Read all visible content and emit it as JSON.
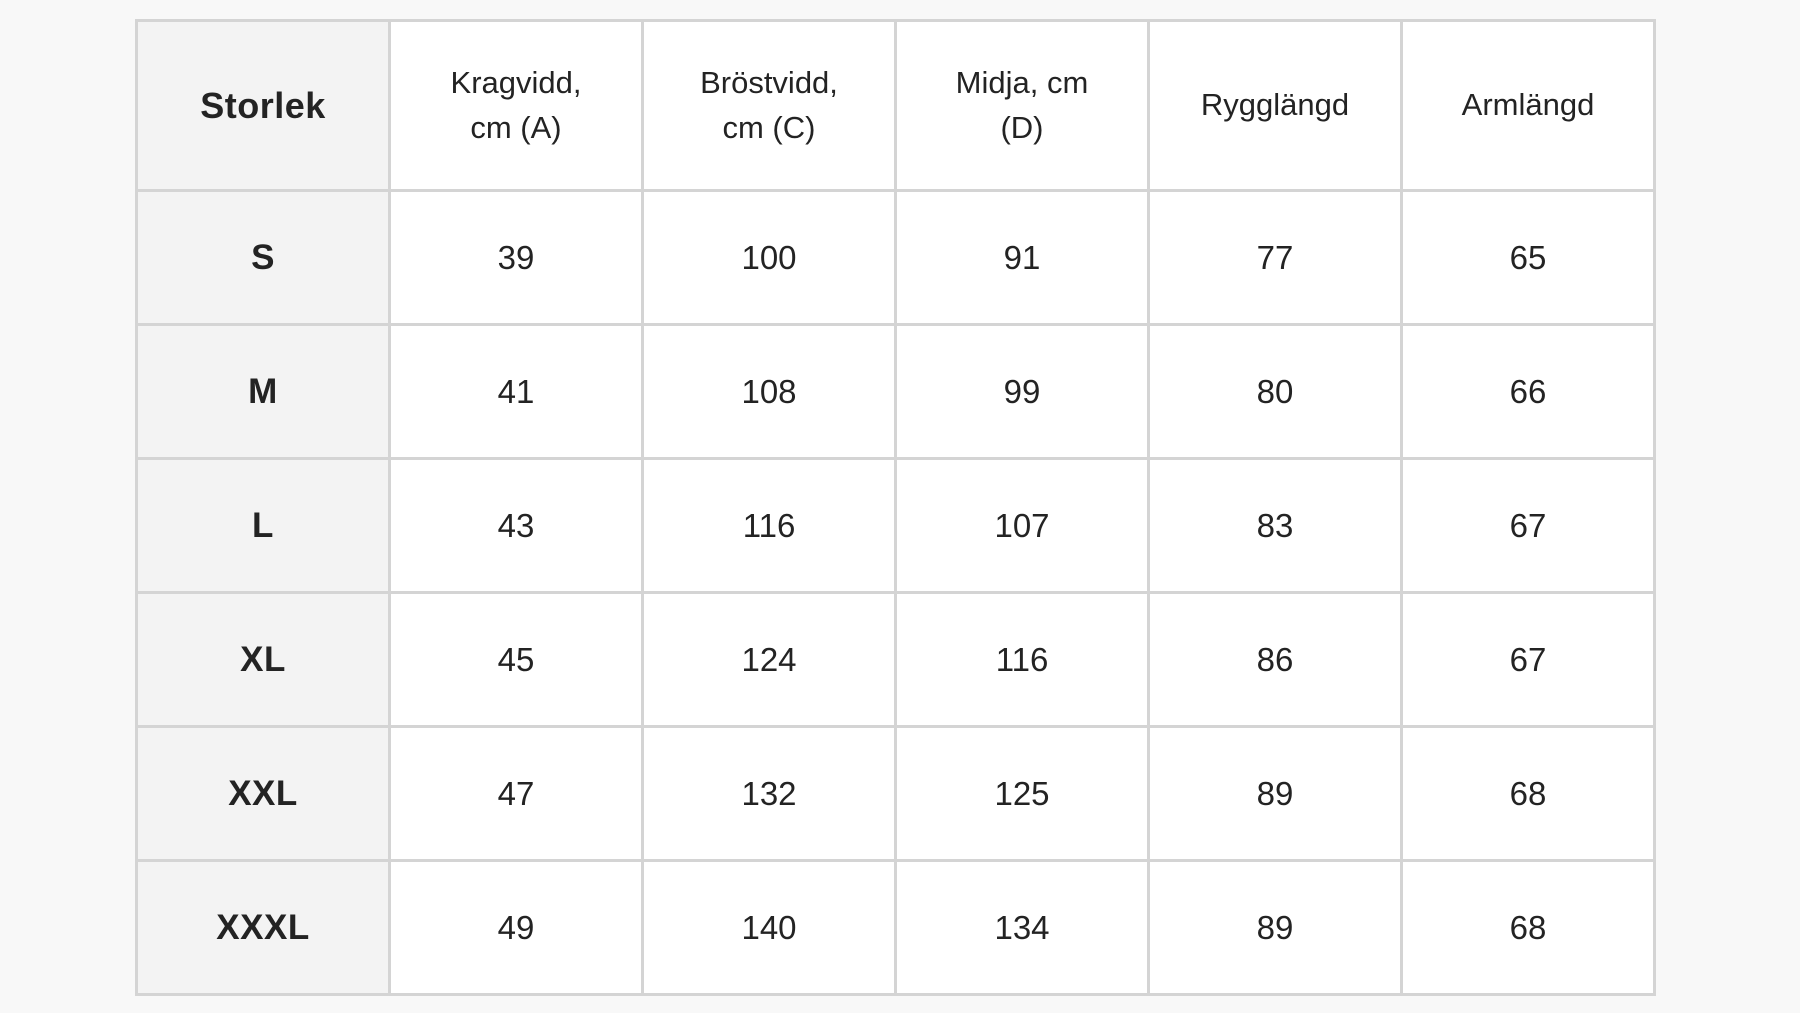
{
  "page": {
    "background_color": "#f8f8f8",
    "grid_color": "#d4d4d4",
    "size_column_bg": "#f3f3f3",
    "cell_bg": "#ffffff",
    "text_color": "#232323"
  },
  "table": {
    "headers": [
      "Storlek",
      "Kragvidd, cm (A)",
      "Bröstvidd, cm (C)",
      "Midja, cm (D)",
      "Rygglängd",
      "Armlängd"
    ],
    "rows": [
      {
        "size": "S",
        "values": [
          "39",
          "100",
          "91",
          "77",
          "65"
        ]
      },
      {
        "size": "M",
        "values": [
          "41",
          "108",
          "99",
          "80",
          "66"
        ]
      },
      {
        "size": "L",
        "values": [
          "43",
          "116",
          "107",
          "83",
          "67"
        ]
      },
      {
        "size": "XL",
        "values": [
          "45",
          "124",
          "116",
          "86",
          "67"
        ]
      },
      {
        "size": "XXL",
        "values": [
          "47",
          "132",
          "125",
          "89",
          "68"
        ]
      },
      {
        "size": "XXXL",
        "values": [
          "49",
          "140",
          "134",
          "89",
          "68"
        ]
      }
    ]
  }
}
